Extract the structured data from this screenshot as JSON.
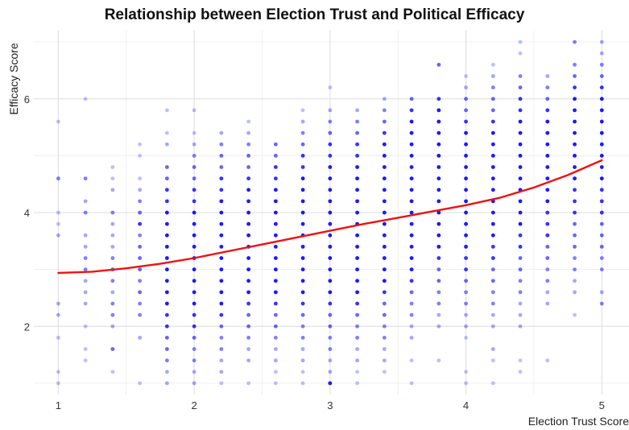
{
  "chart_data": {
    "type": "scatter",
    "title": "Relationship between Election Trust and Political Efficacy",
    "xlabel": "Election Trust Score",
    "ylabel": "Efficacy Score",
    "xlim": [
      0.82,
      5.2
    ],
    "ylim": [
      0.8,
      7.2
    ],
    "x_ticks": [
      1,
      2,
      3,
      4,
      5
    ],
    "y_ticks": [
      2,
      4,
      6
    ],
    "grid": true,
    "point_color": "#0000ff",
    "trend_color": "#ee1111",
    "x_levels": [
      1.0,
      1.2,
      1.4,
      1.6,
      1.8,
      2.0,
      2.2,
      2.4,
      2.6,
      2.8,
      3.0,
      3.2,
      3.4,
      3.6,
      3.8,
      4.0,
      4.2,
      4.4,
      4.6,
      4.8,
      5.0
    ],
    "points_by_x": [
      {
        "x": 1.0,
        "y": [
          1.0,
          1.2,
          1.8,
          2.2,
          2.4,
          3.6,
          3.8,
          4.0,
          4.6,
          5.6
        ]
      },
      {
        "x": 1.2,
        "y": [
          1.4,
          1.6,
          2.0,
          2.4,
          2.6,
          2.8,
          3.0,
          3.2,
          3.4,
          3.6,
          4.0,
          4.2,
          4.6,
          6.0
        ]
      },
      {
        "x": 1.4,
        "y": [
          1.2,
          1.6,
          2.0,
          2.2,
          2.4,
          2.6,
          2.8,
          3.0,
          3.2,
          3.4,
          3.6,
          3.8,
          4.0,
          4.4,
          4.6,
          4.8
        ]
      },
      {
        "x": 1.6,
        "y": [
          1.0,
          1.8,
          2.2,
          2.4,
          2.6,
          2.8,
          3.0,
          3.2,
          3.4,
          3.6,
          3.8,
          4.0,
          4.2,
          4.4,
          4.6,
          5.0,
          5.2
        ]
      },
      {
        "x": 1.8,
        "y": [
          1.0,
          1.2,
          1.4,
          1.6,
          1.8,
          2.0,
          2.2,
          2.4,
          2.6,
          2.8,
          3.0,
          3.2,
          3.4,
          3.6,
          3.8,
          4.0,
          4.2,
          4.4,
          4.6,
          4.8,
          5.2,
          5.4,
          5.8
        ]
      },
      {
        "x": 2.0,
        "y": [
          1.0,
          1.2,
          1.4,
          1.6,
          1.8,
          2.0,
          2.2,
          2.4,
          2.6,
          2.8,
          3.0,
          3.2,
          3.4,
          3.6,
          3.8,
          4.0,
          4.2,
          4.4,
          4.6,
          4.8,
          5.0,
          5.2,
          5.4,
          5.8
        ]
      },
      {
        "x": 2.2,
        "y": [
          1.0,
          1.2,
          1.4,
          1.6,
          1.8,
          2.0,
          2.2,
          2.4,
          2.6,
          2.8,
          3.0,
          3.2,
          3.4,
          3.6,
          3.8,
          4.0,
          4.2,
          4.4,
          4.6,
          4.8,
          5.0,
          5.2,
          5.4
        ]
      },
      {
        "x": 2.4,
        "y": [
          1.0,
          1.4,
          1.6,
          1.8,
          2.0,
          2.2,
          2.4,
          2.6,
          2.8,
          3.0,
          3.2,
          3.4,
          3.6,
          3.8,
          4.0,
          4.2,
          4.4,
          4.6,
          4.8,
          5.0,
          5.2,
          5.4,
          5.6
        ]
      },
      {
        "x": 2.6,
        "y": [
          1.0,
          1.2,
          1.4,
          1.6,
          1.8,
          2.0,
          2.2,
          2.4,
          2.6,
          2.8,
          3.0,
          3.2,
          3.4,
          3.6,
          3.8,
          4.0,
          4.2,
          4.4,
          4.6,
          4.8,
          5.0,
          5.2
        ]
      },
      {
        "x": 2.8,
        "y": [
          1.0,
          1.2,
          1.4,
          1.6,
          1.8,
          2.0,
          2.2,
          2.4,
          2.6,
          2.8,
          3.0,
          3.2,
          3.4,
          3.6,
          3.8,
          4.0,
          4.2,
          4.4,
          4.6,
          4.8,
          5.0,
          5.2,
          5.4,
          5.6,
          5.8
        ]
      },
      {
        "x": 3.0,
        "y": [
          1.0,
          1.2,
          1.4,
          1.6,
          1.8,
          2.0,
          2.2,
          2.4,
          2.6,
          2.8,
          3.0,
          3.2,
          3.4,
          3.6,
          3.8,
          4.0,
          4.2,
          4.4,
          4.6,
          4.8,
          5.0,
          5.2,
          5.4,
          5.6,
          5.8,
          6.2
        ]
      },
      {
        "x": 3.2,
        "y": [
          1.0,
          1.2,
          1.4,
          1.6,
          1.8,
          2.0,
          2.2,
          2.4,
          2.6,
          2.8,
          3.0,
          3.2,
          3.4,
          3.6,
          3.8,
          4.0,
          4.2,
          4.4,
          4.6,
          4.8,
          5.0,
          5.2,
          5.4,
          5.6,
          5.8
        ]
      },
      {
        "x": 3.4,
        "y": [
          1.2,
          1.4,
          1.6,
          1.8,
          2.0,
          2.2,
          2.4,
          2.6,
          2.8,
          3.0,
          3.2,
          3.4,
          3.6,
          3.8,
          4.0,
          4.2,
          4.4,
          4.6,
          4.8,
          5.0,
          5.2,
          5.4,
          5.6,
          5.8,
          6.0
        ]
      },
      {
        "x": 3.6,
        "y": [
          1.0,
          1.4,
          1.8,
          2.0,
          2.2,
          2.4,
          2.6,
          2.8,
          3.0,
          3.2,
          3.4,
          3.6,
          3.8,
          4.0,
          4.2,
          4.4,
          4.6,
          4.8,
          5.0,
          5.2,
          5.4,
          5.6,
          5.8,
          6.0
        ]
      },
      {
        "x": 3.8,
        "y": [
          1.4,
          2.0,
          2.2,
          2.4,
          2.6,
          2.8,
          3.0,
          3.2,
          3.4,
          3.6,
          3.8,
          4.0,
          4.2,
          4.4,
          4.6,
          4.8,
          5.0,
          5.2,
          5.4,
          5.6,
          5.8,
          6.0,
          6.6
        ]
      },
      {
        "x": 4.0,
        "y": [
          1.0,
          1.2,
          1.8,
          2.0,
          2.2,
          2.4,
          2.6,
          2.8,
          3.0,
          3.2,
          3.4,
          3.6,
          3.8,
          4.0,
          4.2,
          4.4,
          4.6,
          4.8,
          5.0,
          5.2,
          5.4,
          5.6,
          5.8,
          6.0,
          6.2,
          6.4
        ]
      },
      {
        "x": 4.2,
        "y": [
          1.0,
          1.4,
          1.6,
          2.0,
          2.2,
          2.4,
          2.6,
          2.8,
          3.0,
          3.2,
          3.4,
          3.6,
          3.8,
          4.0,
          4.2,
          4.4,
          4.6,
          4.8,
          5.0,
          5.2,
          5.4,
          5.6,
          5.8,
          6.0,
          6.2,
          6.4,
          6.6
        ]
      },
      {
        "x": 4.4,
        "y": [
          1.2,
          1.4,
          2.0,
          2.2,
          2.4,
          2.6,
          2.8,
          3.0,
          3.2,
          3.4,
          3.6,
          3.8,
          4.0,
          4.2,
          4.4,
          4.6,
          4.8,
          5.0,
          5.2,
          5.4,
          5.6,
          5.8,
          6.0,
          6.2,
          6.4,
          6.8,
          7.0
        ]
      },
      {
        "x": 4.6,
        "y": [
          1.4,
          2.4,
          2.6,
          2.8,
          3.0,
          3.2,
          3.4,
          3.6,
          3.8,
          4.0,
          4.2,
          4.4,
          4.6,
          4.8,
          5.0,
          5.2,
          5.4,
          5.6,
          5.8,
          6.0,
          6.2,
          6.4
        ]
      },
      {
        "x": 4.8,
        "y": [
          2.2,
          2.6,
          2.8,
          3.0,
          3.2,
          3.4,
          3.6,
          3.8,
          4.0,
          4.2,
          4.4,
          4.6,
          4.8,
          5.0,
          5.2,
          5.4,
          5.6,
          5.8,
          6.0,
          6.2,
          6.4,
          6.6,
          7.0
        ]
      },
      {
        "x": 5.0,
        "y": [
          2.4,
          2.6,
          3.0,
          3.2,
          3.4,
          3.6,
          3.8,
          4.0,
          4.2,
          4.4,
          4.6,
          4.8,
          5.0,
          5.2,
          5.4,
          5.6,
          5.8,
          6.0,
          6.2,
          6.4,
          6.6,
          6.8,
          7.0
        ]
      }
    ],
    "point_density": [
      [
        0.25,
        0.25,
        0.25,
        0.35,
        0.35,
        0.35,
        0.25,
        0.25,
        0.5,
        0.25
      ],
      [
        0.25,
        0.25,
        0.25,
        0.35,
        0.35,
        0.35,
        0.5,
        0.5,
        0.35,
        0.35,
        0.5,
        0.35,
        0.5,
        0.25
      ],
      [
        0.25,
        0.6,
        0.35,
        0.5,
        0.5,
        0.35,
        0.5,
        0.6,
        0.5,
        0.35,
        0.35,
        0.35,
        0.5,
        0.35,
        0.25,
        0.25
      ],
      [
        0.25,
        0.35,
        0.5,
        0.5,
        0.6,
        0.5,
        0.6,
        0.6,
        0.6,
        0.5,
        0.8,
        0.6,
        0.5,
        0.35,
        0.25,
        0.25,
        0.25
      ],
      [
        0.35,
        0.35,
        0.5,
        0.6,
        0.6,
        0.8,
        0.8,
        0.9,
        0.9,
        0.9,
        0.9,
        0.9,
        0.9,
        0.9,
        0.9,
        0.9,
        0.8,
        0.8,
        0.6,
        0.6,
        0.35,
        0.25,
        0.25
      ],
      [
        0.35,
        0.35,
        0.5,
        0.5,
        0.6,
        0.8,
        0.8,
        0.9,
        0.9,
        0.9,
        0.9,
        0.9,
        0.9,
        0.9,
        0.9,
        0.9,
        0.8,
        0.8,
        0.6,
        0.6,
        0.5,
        0.35,
        0.25,
        0.25
      ],
      [
        0.25,
        0.35,
        0.35,
        0.5,
        0.5,
        0.6,
        0.8,
        0.9,
        0.9,
        0.9,
        0.9,
        0.9,
        0.9,
        0.9,
        0.9,
        0.9,
        0.9,
        0.8,
        0.8,
        0.6,
        0.6,
        0.5,
        0.35
      ],
      [
        0.25,
        0.35,
        0.35,
        0.5,
        0.6,
        0.6,
        0.8,
        0.9,
        0.9,
        0.9,
        0.9,
        0.9,
        0.9,
        0.9,
        0.9,
        0.9,
        0.9,
        0.8,
        0.6,
        0.6,
        0.5,
        0.35,
        0.25
      ],
      [
        0.25,
        0.25,
        0.35,
        0.35,
        0.5,
        0.6,
        0.6,
        0.8,
        0.9,
        0.9,
        0.9,
        0.9,
        0.9,
        0.9,
        0.9,
        0.9,
        0.9,
        0.9,
        0.8,
        0.8,
        0.6,
        0.6
      ],
      [
        0.25,
        0.25,
        0.35,
        0.35,
        0.5,
        0.5,
        0.6,
        0.8,
        0.9,
        0.9,
        0.9,
        0.9,
        0.9,
        0.9,
        0.9,
        0.9,
        0.9,
        0.9,
        0.9,
        0.8,
        0.8,
        0.6,
        0.5,
        0.35,
        0.25
      ],
      [
        0.9,
        0.35,
        0.35,
        0.5,
        0.5,
        0.6,
        0.6,
        0.8,
        0.9,
        0.9,
        0.9,
        0.9,
        0.9,
        0.9,
        0.9,
        0.9,
        0.9,
        0.9,
        0.9,
        0.9,
        0.8,
        0.8,
        0.6,
        0.5,
        0.35,
        0.25
      ],
      [
        0.25,
        0.25,
        0.35,
        0.35,
        0.5,
        0.5,
        0.6,
        0.8,
        0.9,
        0.9,
        0.9,
        0.9,
        0.9,
        0.9,
        0.9,
        0.9,
        0.9,
        0.9,
        0.9,
        0.9,
        0.8,
        0.8,
        0.6,
        0.5,
        0.35
      ],
      [
        0.25,
        0.35,
        0.35,
        0.5,
        0.5,
        0.6,
        0.6,
        0.8,
        0.9,
        0.9,
        0.9,
        0.9,
        0.9,
        0.9,
        0.9,
        0.9,
        0.9,
        0.9,
        0.9,
        0.9,
        0.9,
        0.8,
        0.6,
        0.5,
        0.35
      ],
      [
        0.25,
        0.25,
        0.35,
        0.35,
        0.5,
        0.5,
        0.6,
        0.8,
        0.9,
        0.9,
        0.9,
        0.9,
        0.9,
        0.9,
        0.9,
        0.9,
        0.9,
        0.9,
        0.9,
        0.9,
        0.9,
        0.9,
        0.8,
        0.6
      ],
      [
        0.25,
        0.35,
        0.35,
        0.5,
        0.5,
        0.6,
        0.6,
        0.8,
        0.9,
        0.9,
        0.9,
        0.9,
        0.9,
        0.9,
        0.9,
        0.9,
        0.9,
        0.9,
        0.9,
        0.9,
        0.9,
        0.8,
        0.6,
        0.25
      ],
      [
        0.25,
        0.25,
        0.25,
        0.35,
        0.35,
        0.5,
        0.5,
        0.6,
        0.8,
        0.8,
        0.9,
        0.9,
        0.9,
        0.9,
        0.9,
        0.9,
        0.9,
        0.9,
        0.9,
        0.9,
        0.9,
        0.8,
        0.6,
        0.6,
        0.35,
        0.25
      ],
      [
        0.25,
        0.25,
        0.35,
        0.35,
        0.35,
        0.5,
        0.5,
        0.6,
        0.6,
        0.8,
        0.8,
        0.9,
        0.9,
        0.9,
        0.9,
        0.9,
        0.9,
        0.9,
        0.9,
        0.9,
        0.9,
        0.8,
        0.6,
        0.6,
        0.5,
        0.35,
        0.25
      ],
      [
        0.25,
        0.25,
        0.35,
        0.35,
        0.35,
        0.5,
        0.5,
        0.6,
        0.6,
        0.8,
        0.8,
        0.9,
        0.9,
        0.9,
        0.9,
        0.9,
        0.9,
        0.9,
        0.9,
        0.9,
        0.9,
        0.8,
        0.8,
        0.6,
        0.5,
        0.25,
        0.25
      ],
      [
        0.25,
        0.35,
        0.35,
        0.5,
        0.5,
        0.6,
        0.6,
        0.8,
        0.8,
        0.8,
        0.9,
        0.9,
        0.9,
        0.9,
        0.9,
        0.9,
        0.9,
        0.9,
        0.8,
        0.6,
        0.5,
        0.35
      ],
      [
        0.25,
        0.35,
        0.35,
        0.5,
        0.5,
        0.6,
        0.6,
        0.6,
        0.8,
        0.8,
        0.8,
        0.9,
        0.9,
        0.9,
        0.9,
        0.9,
        0.9,
        0.9,
        0.9,
        0.8,
        0.6,
        0.5,
        0.5
      ],
      [
        0.5,
        0.35,
        0.5,
        0.5,
        0.6,
        0.6,
        0.6,
        0.8,
        0.8,
        0.8,
        0.9,
        0.9,
        0.9,
        0.9,
        0.9,
        0.9,
        0.9,
        0.9,
        0.8,
        0.6,
        0.5,
        0.35,
        0.35
      ]
    ],
    "trend": {
      "x": [
        1.0,
        1.25,
        1.5,
        1.75,
        2.0,
        2.25,
        2.5,
        2.75,
        3.0,
        3.25,
        3.5,
        3.75,
        4.0,
        4.25,
        4.5,
        4.75,
        5.0
      ],
      "y": [
        2.94,
        2.96,
        3.02,
        3.1,
        3.2,
        3.32,
        3.44,
        3.56,
        3.68,
        3.8,
        3.91,
        4.02,
        4.13,
        4.26,
        4.44,
        4.66,
        4.92
      ]
    }
  }
}
